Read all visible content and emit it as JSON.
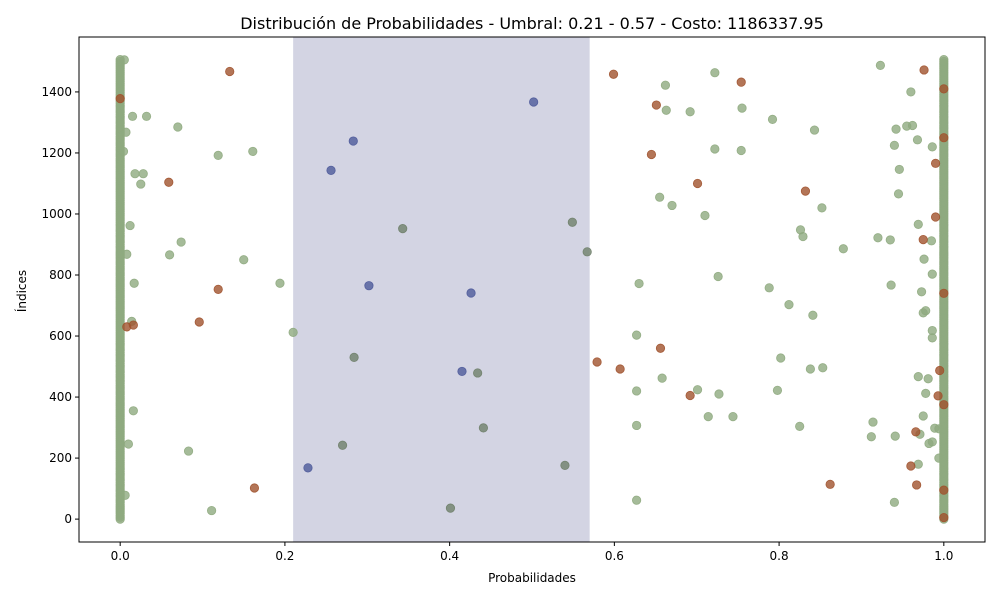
{
  "chart_data": {
    "type": "scatter",
    "title": "Distribución de Probabilidades - Umbral: 0.21 - 0.57 - Costo: 1186337.95",
    "xlabel": "Probabilidades",
    "ylabel": "Índices",
    "xlim": [
      -0.05,
      1.05
    ],
    "ylim": [
      -75,
      1580
    ],
    "xticks": [
      0.0,
      0.2,
      0.4,
      0.6,
      0.8,
      1.0
    ],
    "xtick_labels": [
      "0.0",
      "0.2",
      "0.4",
      "0.6",
      "0.8",
      "1.0"
    ],
    "yticks": [
      0,
      200,
      400,
      600,
      800,
      1000,
      1200,
      1400
    ],
    "ytick_labels": [
      "0",
      "200",
      "400",
      "600",
      "800",
      "1000",
      "1200",
      "1400"
    ],
    "grid": false,
    "threshold_band": {
      "x_start": 0.21,
      "x_end": 0.57,
      "color": "#aeb0cc"
    },
    "colors": {
      "green": "#8faa7f",
      "red": "#a0522d",
      "blue": "#4e5a9a",
      "gray": "#6f7f6a"
    },
    "series": [
      {
        "color": "green",
        "points": [
          [
            0.005,
            1505
          ],
          [
            0.015,
            1320
          ],
          [
            0.032,
            1320
          ],
          [
            0.07,
            1285
          ],
          [
            0.007,
            1268
          ],
          [
            0.004,
            1205
          ],
          [
            0.119,
            1192
          ],
          [
            0.161,
            1205
          ],
          [
            0.018,
            1132
          ],
          [
            0.028,
            1132
          ],
          [
            0.025,
            1098
          ],
          [
            0.012,
            962
          ],
          [
            0.074,
            908
          ],
          [
            0.008,
            868
          ],
          [
            0.06,
            866
          ],
          [
            0.15,
            850
          ],
          [
            0.194,
            773
          ],
          [
            0.017,
            773
          ],
          [
            0.014,
            648
          ],
          [
            0.21,
            612
          ],
          [
            0.016,
            355
          ],
          [
            0.01,
            246
          ],
          [
            0.083,
            223
          ],
          [
            0.006,
            78
          ],
          [
            0.111,
            28
          ],
          [
            0.662,
            1422
          ],
          [
            0.722,
            1463
          ],
          [
            0.923,
            1487
          ],
          [
            0.96,
            1400
          ],
          [
            0.755,
            1347
          ],
          [
            0.663,
            1340
          ],
          [
            0.692,
            1335
          ],
          [
            0.792,
            1310
          ],
          [
            0.843,
            1275
          ],
          [
            0.942,
            1278
          ],
          [
            0.955,
            1288
          ],
          [
            0.962,
            1290
          ],
          [
            0.968,
            1243
          ],
          [
            0.94,
            1225
          ],
          [
            0.986,
            1220
          ],
          [
            0.722,
            1213
          ],
          [
            0.754,
            1208
          ],
          [
            0.946,
            1146
          ],
          [
            0.655,
            1055
          ],
          [
            0.67,
            1028
          ],
          [
            0.945,
            1066
          ],
          [
            0.852,
            1020
          ],
          [
            0.71,
            995
          ],
          [
            0.969,
            966
          ],
          [
            0.826,
            948
          ],
          [
            0.829,
            926
          ],
          [
            0.92,
            922
          ],
          [
            0.935,
            915
          ],
          [
            0.985,
            912
          ],
          [
            0.878,
            886
          ],
          [
            0.976,
            852
          ],
          [
            0.726,
            795
          ],
          [
            0.986,
            803
          ],
          [
            0.63,
            772
          ],
          [
            0.788,
            758
          ],
          [
            0.936,
            767
          ],
          [
            0.973,
            745
          ],
          [
            0.812,
            703
          ],
          [
            0.841,
            668
          ],
          [
            0.975,
            676
          ],
          [
            0.978,
            683
          ],
          [
            0.986,
            618
          ],
          [
            0.627,
            603
          ],
          [
            0.986,
            594
          ],
          [
            0.802,
            528
          ],
          [
            0.838,
            492
          ],
          [
            0.853,
            496
          ],
          [
            0.658,
            462
          ],
          [
            0.701,
            424
          ],
          [
            0.727,
            410
          ],
          [
            0.969,
            467
          ],
          [
            0.981,
            460
          ],
          [
            0.627,
            420
          ],
          [
            0.798,
            422
          ],
          [
            0.978,
            412
          ],
          [
            0.714,
            336
          ],
          [
            0.744,
            336
          ],
          [
            0.975,
            338
          ],
          [
            0.914,
            318
          ],
          [
            0.627,
            307
          ],
          [
            0.825,
            304
          ],
          [
            0.989,
            298
          ],
          [
            0.994,
            296
          ],
          [
            0.971,
            278
          ],
          [
            0.912,
            270
          ],
          [
            0.941,
            272
          ],
          [
            0.982,
            248
          ],
          [
            0.986,
            253
          ],
          [
            0.994,
            200
          ],
          [
            0.969,
            180
          ],
          [
            0.627,
            62
          ],
          [
            0.94,
            55
          ]
        ]
      },
      {
        "color": "red",
        "points": [
          [
            0.0,
            1378
          ],
          [
            0.133,
            1467
          ],
          [
            0.059,
            1104
          ],
          [
            0.119,
            753
          ],
          [
            0.096,
            646
          ],
          [
            0.008,
            630
          ],
          [
            0.016,
            636
          ],
          [
            0.163,
            102
          ],
          [
            0.599,
            1458
          ],
          [
            0.754,
            1432
          ],
          [
            0.651,
            1357
          ],
          [
            0.645,
            1195
          ],
          [
            0.701,
            1100
          ],
          [
            0.832,
            1075
          ],
          [
            0.976,
            1472
          ],
          [
            0.99,
            1166
          ],
          [
            0.99,
            990
          ],
          [
            0.975,
            916
          ],
          [
            0.579,
            515
          ],
          [
            0.607,
            492
          ],
          [
            0.656,
            560
          ],
          [
            0.692,
            405
          ],
          [
            0.995,
            487
          ],
          [
            0.993,
            404
          ],
          [
            0.966,
            286
          ],
          [
            0.96,
            174
          ],
          [
            0.967,
            112
          ],
          [
            0.862,
            114
          ],
          [
            1.0,
            1410
          ],
          [
            1.0,
            1250
          ],
          [
            1.0,
            740
          ],
          [
            1.0,
            375
          ],
          [
            1.0,
            95
          ],
          [
            1.0,
            5
          ]
        ]
      },
      {
        "color": "blue",
        "points": [
          [
            0.502,
            1367
          ],
          [
            0.283,
            1239
          ],
          [
            0.256,
            1143
          ],
          [
            0.302,
            765
          ],
          [
            0.426,
            741
          ],
          [
            0.415,
            484
          ],
          [
            0.228,
            168
          ]
        ]
      },
      {
        "color": "gray",
        "points": [
          [
            0.549,
            973
          ],
          [
            0.343,
            952
          ],
          [
            0.567,
            876
          ],
          [
            0.284,
            530
          ],
          [
            0.434,
            479
          ],
          [
            0.441,
            299
          ],
          [
            0.27,
            242
          ],
          [
            0.54,
            176
          ],
          [
            0.401,
            36
          ]
        ]
      }
    ],
    "dense_columns": [
      {
        "x": 0.0,
        "color": "green",
        "from": 0,
        "to": 1508,
        "step": 6
      },
      {
        "x": 1.0,
        "color": "green",
        "from": 0,
        "to": 1508,
        "step": 6
      }
    ]
  }
}
